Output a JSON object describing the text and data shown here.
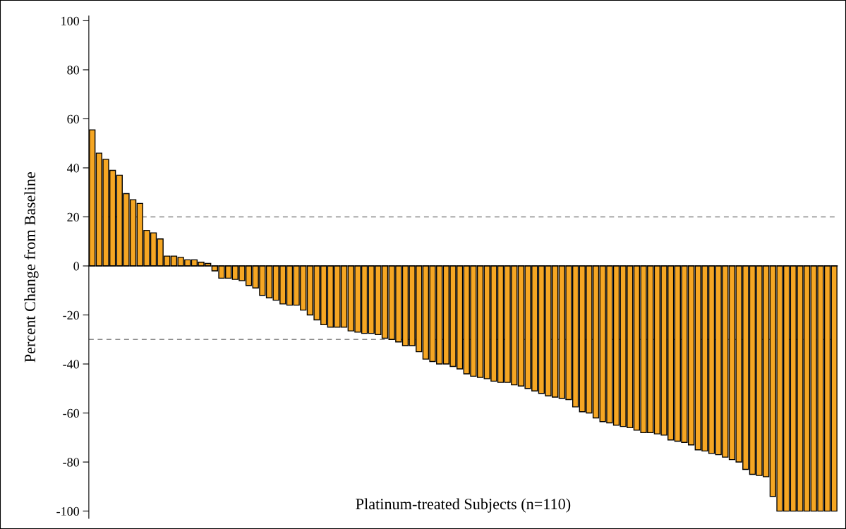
{
  "chart_data": {
    "type": "bar",
    "xlabel": "Platinum-treated Subjects (n=110)",
    "ylabel": "Percent Change from Baseline",
    "categories": [
      null,
      null,
      null,
      null,
      null,
      null,
      null,
      null,
      null,
      null,
      null,
      null,
      null,
      null,
      null,
      null,
      null,
      null,
      null,
      null,
      null,
      null,
      null,
      null,
      null,
      null,
      null,
      null,
      null,
      null,
      null,
      null,
      null,
      null,
      null,
      null,
      null,
      null,
      null,
      null,
      null,
      null,
      null,
      null,
      null,
      null,
      null,
      null,
      null,
      null,
      null,
      null,
      null,
      null,
      null,
      null,
      null,
      null,
      null,
      null,
      null,
      null,
      null,
      null,
      null,
      null,
      null,
      null,
      null,
      null,
      null,
      null,
      null,
      null,
      null,
      null,
      null,
      null,
      null,
      null,
      null,
      null,
      null,
      null,
      null,
      null,
      null,
      null,
      null,
      null,
      null,
      null,
      null,
      null,
      null,
      null,
      null,
      null,
      null,
      null,
      null,
      null,
      null,
      null,
      null,
      null,
      null,
      null,
      null,
      null
    ],
    "values": [
      55.5,
      46,
      43.5,
      39,
      37,
      29.5,
      27,
      25.5,
      14.5,
      13.5,
      11,
      4,
      4,
      3.5,
      2.5,
      2.5,
      1.5,
      1,
      -2,
      -5,
      -5,
      -5.5,
      -6,
      -8,
      -9,
      -12,
      -13,
      -14,
      -15.5,
      -16,
      -16,
      -18,
      -20,
      -22,
      -24,
      -25,
      -25,
      -25,
      -26.5,
      -27,
      -27.5,
      -27.5,
      -28,
      -29.5,
      -30,
      -31,
      -32.5,
      -32.5,
      -35,
      -38,
      -39,
      -40,
      -40,
      -41,
      -42,
      -44,
      -45,
      -45.5,
      -46,
      -47,
      -47.5,
      -47.5,
      -48.5,
      -49,
      -50,
      -51,
      -52,
      -53,
      -53.5,
      -54,
      -54.5,
      -57.5,
      -59.5,
      -60,
      -62,
      -63.5,
      -64,
      -65,
      -65.5,
      -66,
      -67,
      -68,
      -68,
      -68.5,
      -69,
      -71,
      -71.5,
      -72,
      -73,
      -75,
      -75.5,
      -76.5,
      -77,
      -78,
      -79,
      -80,
      -83,
      -85,
      -85.5,
      -86,
      -94,
      -100,
      -100,
      -100,
      -100,
      -100,
      -100,
      -100,
      -100,
      -100
    ],
    "color": "#f5a623",
    "ylim": [
      -103,
      102
    ],
    "yticks": [
      -100,
      -80,
      -60,
      -40,
      -20,
      0,
      20,
      40,
      60,
      80,
      100
    ],
    "grid": false,
    "ref_lines": [
      {
        "axis": "y",
        "value": 20,
        "color": "#888888",
        "line_style": "dashed"
      },
      {
        "axis": "y",
        "value": -30,
        "color": "#888888",
        "line_style": "dashed"
      }
    ]
  }
}
